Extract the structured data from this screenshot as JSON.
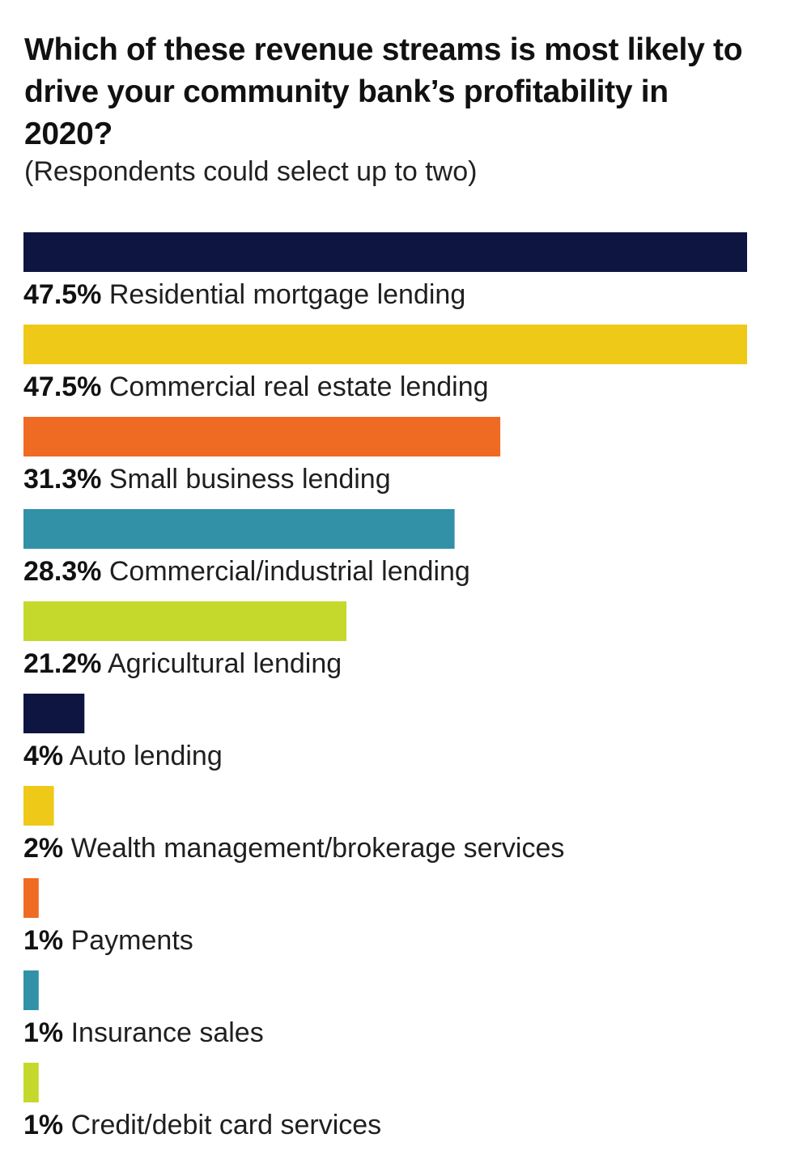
{
  "chart_data": {
    "type": "bar",
    "orientation": "horizontal",
    "title": "Which of these revenue streams is most likely to drive your community bank’s profitability in 2020?",
    "subtitle": "(Respondents could select up to two)",
    "categories": [
      "Residential mortgage lending",
      "Commercial real estate lending",
      "Small business lending",
      "Commercial/industrial lending",
      "Agricultural lending",
      "Auto lending",
      "Wealth management/brokerage services",
      "Payments",
      "Insurance sales",
      "Credit/debit card services"
    ],
    "values": [
      47.5,
      47.5,
      31.3,
      28.3,
      21.2,
      4,
      2,
      1,
      1,
      1
    ],
    "value_labels": [
      "47.5%",
      "47.5%",
      "31.3%",
      "28.3%",
      "21.2%",
      "4%",
      "2%",
      "1%",
      "1%",
      "1%"
    ],
    "colors": [
      "#0e1540",
      "#eec917",
      "#ef6b24",
      "#3290a7",
      "#c5d82c",
      "#0e1540",
      "#eec917",
      "#ef6b24",
      "#3290a7",
      "#c5d82c"
    ],
    "xlim": [
      0,
      47.5
    ],
    "grid": false,
    "legend": "none"
  }
}
